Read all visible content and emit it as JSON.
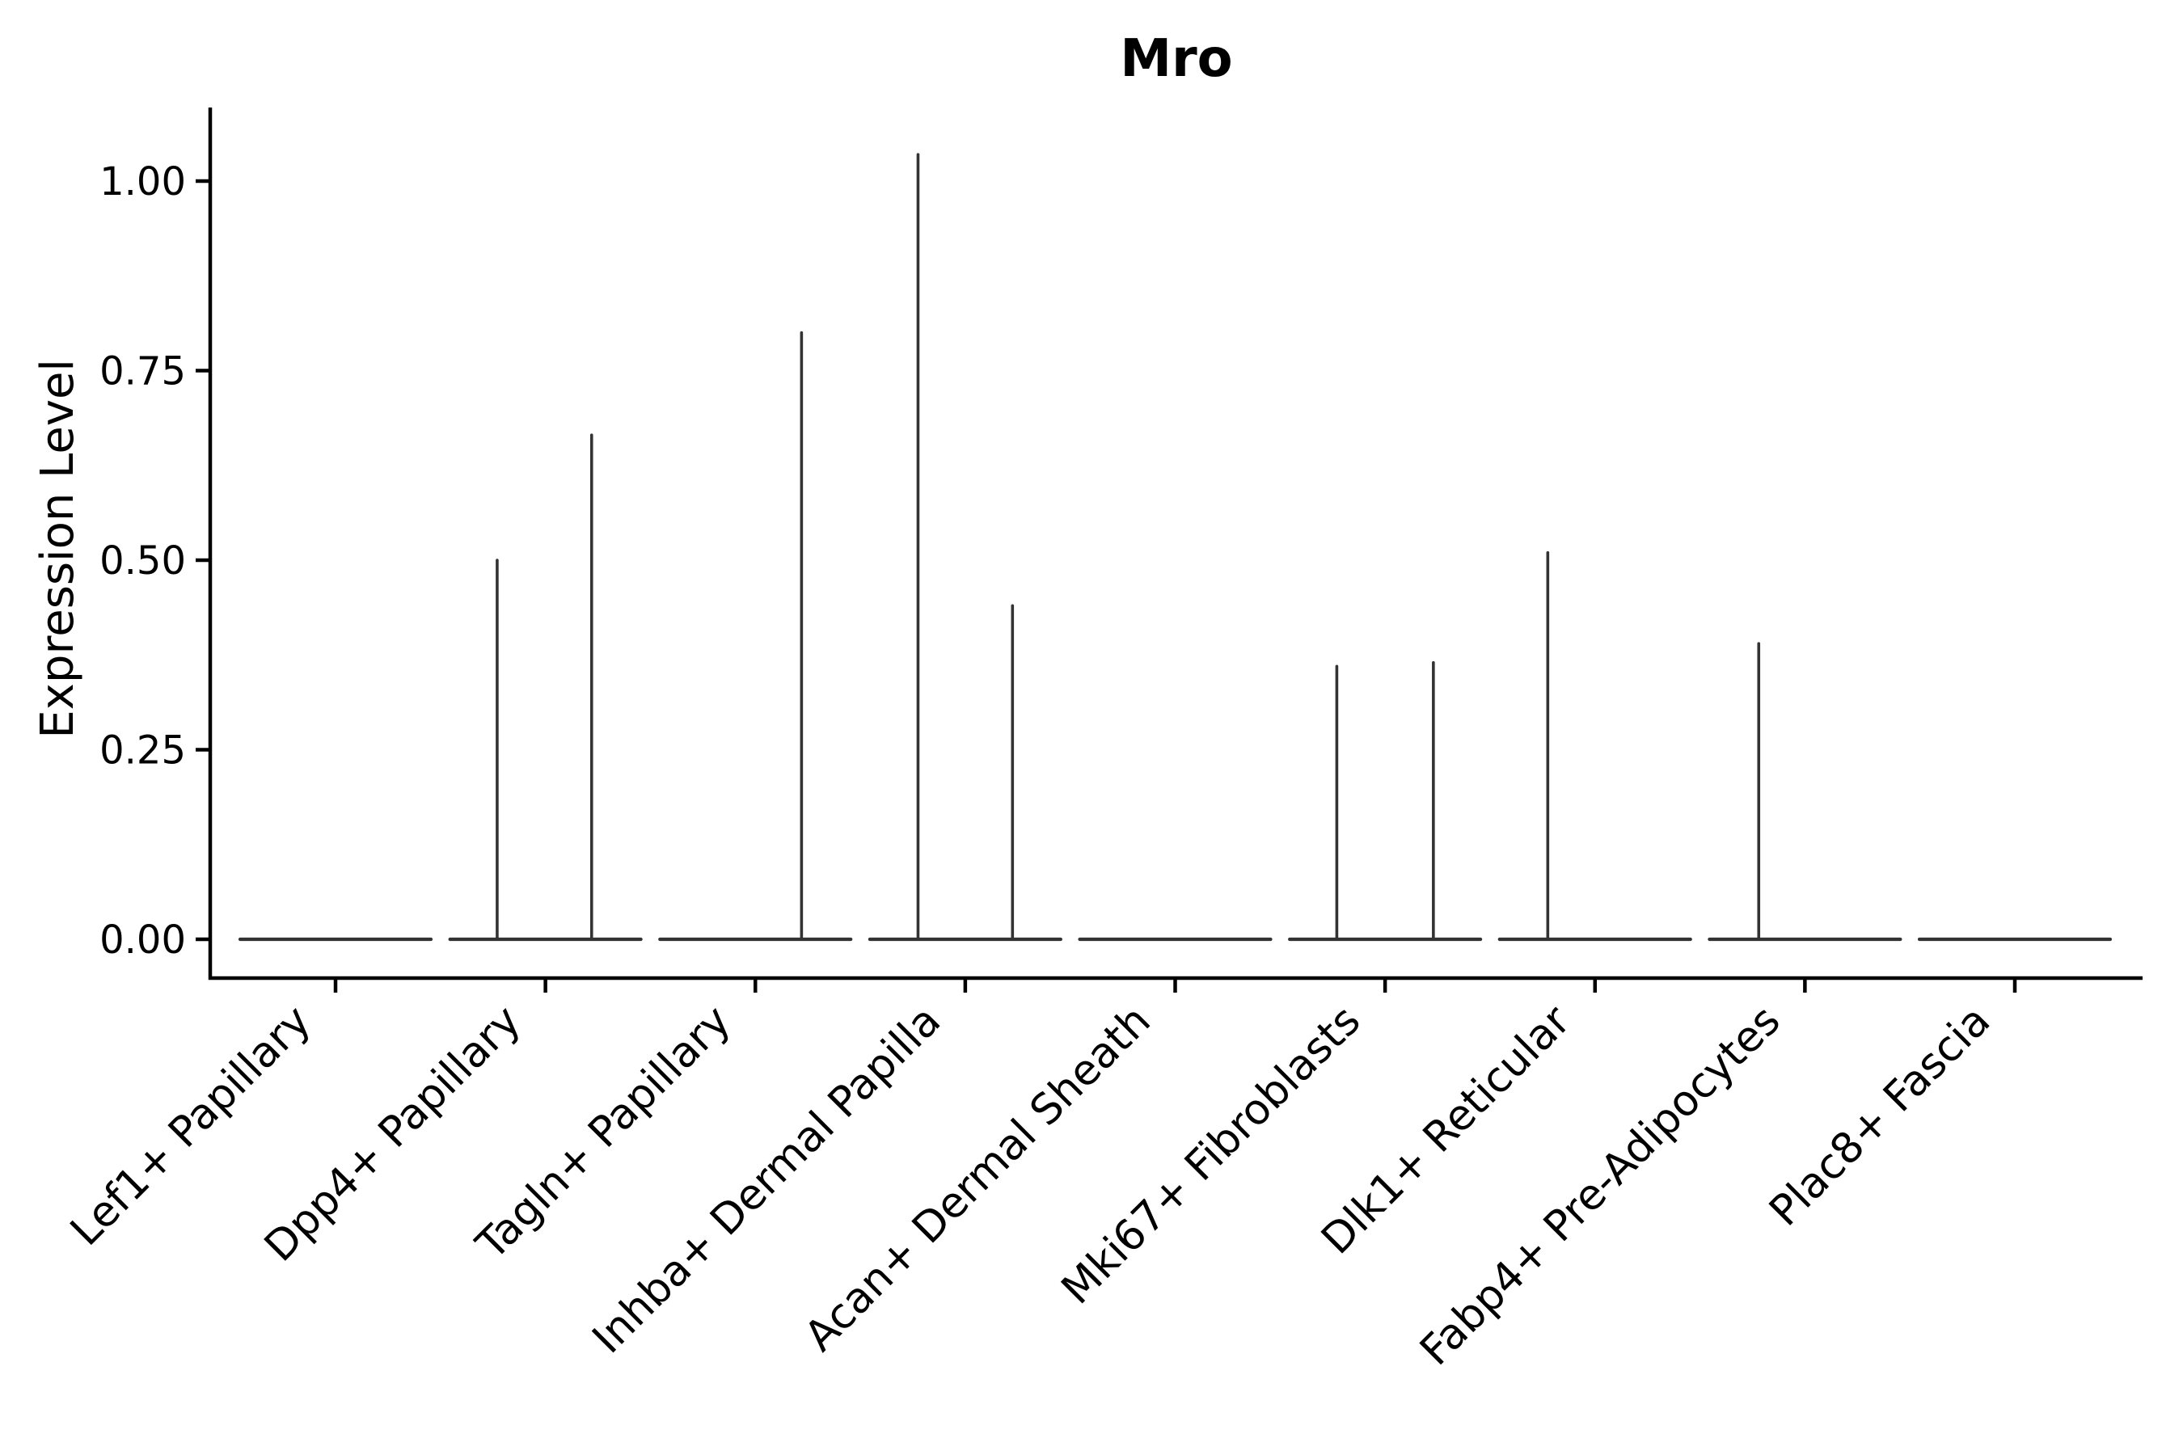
{
  "chart_data": {
    "type": "violin",
    "title": "Mro",
    "xlabel": "",
    "ylabel": "Expression Level",
    "ylim": [
      0,
      1.095
    ],
    "grid": false,
    "legend": "none",
    "yticks": [
      {
        "label": "0.00",
        "value": 0.0
      },
      {
        "label": "0.25",
        "value": 0.25
      },
      {
        "label": "0.50",
        "value": 0.5
      },
      {
        "label": "0.75",
        "value": 0.75
      },
      {
        "label": "1.00",
        "value": 1.0
      }
    ],
    "categories": [
      "Lef1+ Papillary",
      "Dpp4+ Papillary",
      "Tagln+ Papillary",
      "Inhba+ Dermal Papilla",
      "Acan+ Dermal Sheath",
      "Mki67+ Fibroblasts",
      "Dlk1+ Reticular",
      "Fabp4+ Pre-Adipocytes",
      "Plac8+ Fascia"
    ],
    "violins": [
      {
        "category": "Lef1+ Papillary",
        "baseline_value": 0.0,
        "spikes": []
      },
      {
        "category": "Dpp4+ Papillary",
        "baseline_value": 0.0,
        "spikes": [
          {
            "offset": -0.23,
            "value": 0.5
          },
          {
            "offset": 0.22,
            "value": 0.665
          }
        ]
      },
      {
        "category": "Tagln+ Papillary",
        "baseline_value": 0.0,
        "spikes": [
          {
            "offset": 0.22,
            "value": 0.8
          }
        ]
      },
      {
        "category": "Inhba+ Dermal Papilla",
        "baseline_value": 0.0,
        "spikes": [
          {
            "offset": -0.225,
            "value": 1.035
          },
          {
            "offset": 0.225,
            "value": 0.44
          }
        ]
      },
      {
        "category": "Acan+ Dermal Sheath",
        "baseline_value": 0.0,
        "spikes": []
      },
      {
        "category": "Mki67+ Fibroblasts",
        "baseline_value": 0.0,
        "spikes": [
          {
            "offset": -0.23,
            "value": 0.36
          },
          {
            "offset": 0.23,
            "value": 0.365
          }
        ]
      },
      {
        "category": "Dlk1+ Reticular",
        "baseline_value": 0.0,
        "spikes": [
          {
            "offset": -0.225,
            "value": 0.51
          }
        ]
      },
      {
        "category": "Fabp4+ Pre-Adipocytes",
        "baseline_value": 0.0,
        "spikes": [
          {
            "offset": -0.22,
            "value": 0.39
          }
        ]
      },
      {
        "category": "Plac8+ Fascia",
        "baseline_value": 0.0,
        "spikes": []
      }
    ],
    "colors": {
      "violin_stroke": "#333333",
      "axis": "#000000",
      "text": "#000000",
      "background": "#ffffff"
    }
  }
}
